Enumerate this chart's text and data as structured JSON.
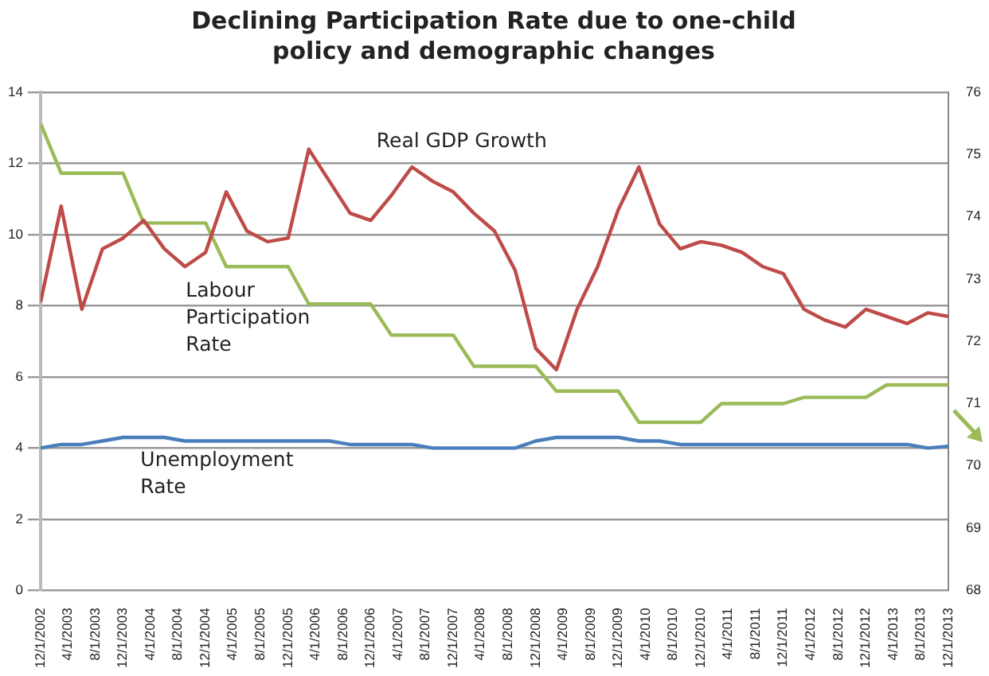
{
  "chart_data": {
    "type": "line",
    "title": "Declining Participation Rate due to one-child policy and demographic changes",
    "x": [
      "2002-12",
      "2003-03",
      "2003-06",
      "2003-09",
      "2003-12",
      "2004-03",
      "2004-06",
      "2004-09",
      "2004-12",
      "2005-03",
      "2005-06",
      "2005-09",
      "2005-12",
      "2006-03",
      "2006-06",
      "2006-09",
      "2006-12",
      "2007-03",
      "2007-06",
      "2007-09",
      "2007-12",
      "2008-03",
      "2008-06",
      "2008-09",
      "2008-12",
      "2009-03",
      "2009-06",
      "2009-09",
      "2009-12",
      "2010-03",
      "2010-06",
      "2010-09",
      "2010-12",
      "2011-03",
      "2011-06",
      "2011-09",
      "2011-12",
      "2012-03",
      "2012-06",
      "2012-09",
      "2012-12",
      "2013-03",
      "2013-06",
      "2013-09",
      "2013-12"
    ],
    "series": [
      {
        "name": "Real GDP Growth",
        "color": "#be4b48",
        "axis": "y",
        "values": [
          8.1,
          10.8,
          7.9,
          9.6,
          9.9,
          10.4,
          9.6,
          9.1,
          9.5,
          11.2,
          10.1,
          9.8,
          9.9,
          12.4,
          11.5,
          10.6,
          10.4,
          11.1,
          11.9,
          11.5,
          11.2,
          10.6,
          10.1,
          9.0,
          6.8,
          6.2,
          7.9,
          9.1,
          10.7,
          11.9,
          10.3,
          9.6,
          9.8,
          9.7,
          9.5,
          9.1,
          8.9,
          7.9,
          7.6,
          7.4,
          7.9,
          7.7,
          7.5,
          7.8,
          7.7
        ]
      },
      {
        "name": "Labour Participation Rate",
        "color": "#9bbb59",
        "axis": "y2",
        "values": [
          75.5,
          74.7,
          74.7,
          74.7,
          74.7,
          73.9,
          73.9,
          73.9,
          73.9,
          73.2,
          73.2,
          73.2,
          73.2,
          72.6,
          72.6,
          72.6,
          72.6,
          72.1,
          72.1,
          72.1,
          72.1,
          71.6,
          71.6,
          71.6,
          71.6,
          71.2,
          71.2,
          71.2,
          71.2,
          70.7,
          70.7,
          70.7,
          70.7,
          71.0,
          71.0,
          71.0,
          71.0,
          71.1,
          71.1,
          71.1,
          71.1,
          71.3,
          71.3,
          71.3,
          71.3
        ]
      },
      {
        "name": "Unemployment Rate",
        "color": "#4a7ebb",
        "axis": "y",
        "values": [
          4.0,
          4.1,
          4.1,
          4.2,
          4.3,
          4.3,
          4.3,
          4.2,
          4.2,
          4.2,
          4.2,
          4.2,
          4.2,
          4.2,
          4.2,
          4.1,
          4.1,
          4.1,
          4.1,
          4.0,
          4.0,
          4.0,
          4.0,
          4.0,
          4.2,
          4.3,
          4.3,
          4.3,
          4.3,
          4.2,
          4.2,
          4.1,
          4.1,
          4.1,
          4.1,
          4.1,
          4.1,
          4.1,
          4.1,
          4.1,
          4.1,
          4.1,
          4.1,
          4.0,
          4.05
        ]
      }
    ],
    "xlim": [
      "2002-12",
      "2013-12"
    ],
    "xticks": [
      {
        "value": "2002-12",
        "label": "12/1/2002"
      },
      {
        "value": "2003-04",
        "label": "4/1/2003"
      },
      {
        "value": "2003-08",
        "label": "8/1/2003"
      },
      {
        "value": "2003-12",
        "label": "12/1/2003"
      },
      {
        "value": "2004-04",
        "label": "4/1/2004"
      },
      {
        "value": "2004-08",
        "label": "8/1/2004"
      },
      {
        "value": "2004-12",
        "label": "12/1/2004"
      },
      {
        "value": "2005-04",
        "label": "4/1/2005"
      },
      {
        "value": "2005-08",
        "label": "8/1/2005"
      },
      {
        "value": "2005-12",
        "label": "12/1/2005"
      },
      {
        "value": "2006-04",
        "label": "4/1/2006"
      },
      {
        "value": "2006-08",
        "label": "8/1/2006"
      },
      {
        "value": "2006-12",
        "label": "12/1/2006"
      },
      {
        "value": "2007-04",
        "label": "4/1/2007"
      },
      {
        "value": "2007-08",
        "label": "8/1/2007"
      },
      {
        "value": "2007-12",
        "label": "12/1/2007"
      },
      {
        "value": "2008-04",
        "label": "4/1/2008"
      },
      {
        "value": "2008-08",
        "label": "8/1/2008"
      },
      {
        "value": "2008-12",
        "label": "12/1/2008"
      },
      {
        "value": "2009-04",
        "label": "4/1/2009"
      },
      {
        "value": "2009-08",
        "label": "8/1/2009"
      },
      {
        "value": "2009-12",
        "label": "12/1/2009"
      },
      {
        "value": "2010-04",
        "label": "4/1/2010"
      },
      {
        "value": "2010-08",
        "label": "8/1/2010"
      },
      {
        "value": "2010-12",
        "label": "12/1/2010"
      },
      {
        "value": "2011-04",
        "label": "4/1/2011"
      },
      {
        "value": "2011-08",
        "label": "8/1/2011"
      },
      {
        "value": "2011-12",
        "label": "12/1/2011"
      },
      {
        "value": "2012-04",
        "label": "4/1/2012"
      },
      {
        "value": "2012-08",
        "label": "8/1/2012"
      },
      {
        "value": "2012-12",
        "label": "12/1/2012"
      },
      {
        "value": "2013-04",
        "label": "4/1/2013"
      },
      {
        "value": "2013-08",
        "label": "8/1/2013"
      },
      {
        "value": "2013-12",
        "label": "12/1/2013"
      }
    ],
    "ylim": [
      0,
      14
    ],
    "yticks": [
      0,
      2,
      4,
      6,
      8,
      10,
      12,
      14
    ],
    "y2lim": [
      68,
      76
    ],
    "y2ticks": [
      68,
      69,
      70,
      71,
      72,
      73,
      74,
      75,
      76
    ],
    "grid": "y",
    "legend": false,
    "marker": "none",
    "line_style": "solid"
  }
}
